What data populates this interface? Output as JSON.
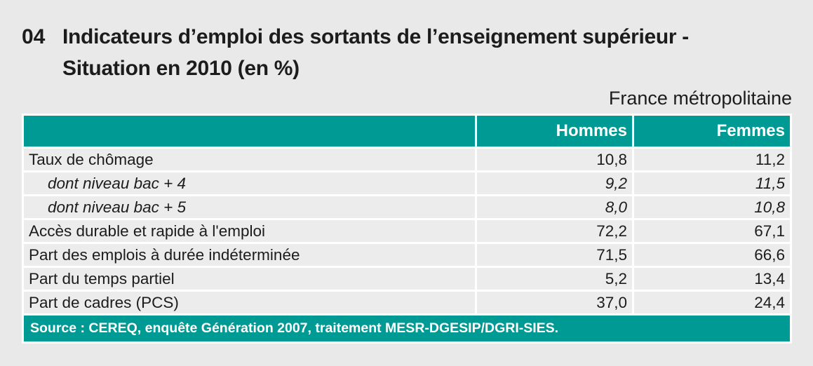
{
  "figure": {
    "number": "04",
    "title_line1": "Indicateurs d’emploi des sortants de l’enseignement supérieur -",
    "title_line2": "Situation en 2010 (en %)",
    "region_note": "France métropolitaine"
  },
  "chart_data": {
    "type": "table",
    "title": "Indicateurs d’emploi des sortants de l’enseignement supérieur - Situation en 2010 (en %)",
    "columns": [
      "",
      "Hommes",
      "Femmes"
    ],
    "rows": [
      {
        "label": "Taux de chômage",
        "hommes": "10,8",
        "femmes": "11,2",
        "emphasis": "normal"
      },
      {
        "label": "dont niveau bac + 4",
        "hommes": "9,2",
        "femmes": "11,5",
        "emphasis": "italic-sub"
      },
      {
        "label": "dont niveau bac + 5",
        "hommes": "8,0",
        "femmes": "10,8",
        "emphasis": "italic-sub"
      },
      {
        "label": "Accès durable et rapide à l'emploi",
        "hommes": "72,2",
        "femmes": "67,1",
        "emphasis": "normal"
      },
      {
        "label": "Part des emplois à durée indéterminée",
        "hommes": "71,5",
        "femmes": "66,6",
        "emphasis": "normal"
      },
      {
        "label": "Part du temps partiel",
        "hommes": "5,2",
        "femmes": "13,4",
        "emphasis": "normal"
      },
      {
        "label": "Part de cadres (PCS)",
        "hommes": "37,0",
        "femmes": "24,4",
        "emphasis": "normal"
      }
    ],
    "source": "Source : CEREQ, enquête Génération 2007, traitement MESR-DGESIP/DGRI-SIES.",
    "layout": {
      "header_bg": "#009a94",
      "row_bg": "#ececec",
      "values_alignment": "right"
    }
  },
  "colors": {
    "accent_teal": "#009a94",
    "row_gray": "#ececec",
    "page_bg": "#e9e9e9",
    "header_text": "#ffffff",
    "body_text": "#1c1c1c"
  }
}
